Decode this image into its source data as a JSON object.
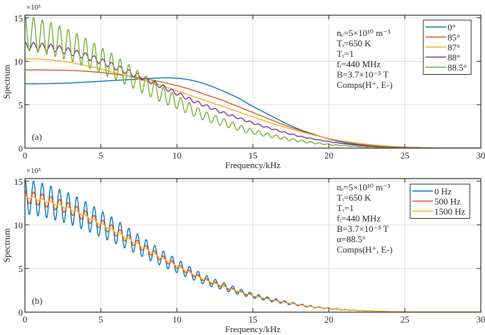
{
  "chart_data": [
    {
      "type": "line",
      "panel_label": "(a)",
      "xlabel": "Frequency/kHz",
      "ylabel": "Spectrum",
      "y_multiplier": "×10⁵",
      "xlim": [
        0,
        30
      ],
      "ylim": [
        0,
        15.3
      ],
      "xticks": [
        0,
        5,
        10,
        15,
        20,
        25,
        30
      ],
      "yticks": [
        0,
        5,
        10,
        15
      ],
      "grid": true,
      "legend_position": "top-right",
      "annotation": [
        "nₑ=5×10¹⁰ m⁻³",
        "Tᵢ=650 K",
        "Tᵣ=1",
        "fᵢ=440 MHz",
        "B=3.7×10⁻⁵ T",
        "Comps(H⁺, E-)"
      ],
      "x_step_khz": 1,
      "oscillation_period_khz": 0.57,
      "series": [
        {
          "name": "0°",
          "color": "#0072BD",
          "rel_osc": 0,
          "values": [
            7.4,
            7.42,
            7.45,
            7.5,
            7.6,
            7.7,
            7.8,
            7.9,
            8.0,
            8.08,
            8.05,
            7.8,
            7.3,
            6.6,
            5.8,
            4.8,
            3.9,
            3.0,
            2.2,
            1.6,
            1.05,
            0.65,
            0.38,
            0.2,
            0.1,
            0.05,
            0.02,
            0.01,
            0,
            0,
            0
          ]
        },
        {
          "name": "85°",
          "color": "#D95319",
          "rel_osc": 0,
          "values": [
            9.0,
            9.0,
            8.98,
            8.95,
            8.85,
            8.7,
            8.5,
            8.25,
            7.95,
            7.6,
            7.2,
            6.7,
            6.1,
            5.5,
            4.8,
            4.1,
            3.4,
            2.7,
            2.1,
            1.55,
            1.1,
            0.75,
            0.48,
            0.3,
            0.17,
            0.09,
            0.04,
            0.02,
            0.01,
            0,
            0
          ]
        },
        {
          "name": "87°",
          "color": "#EDB120",
          "rel_osc": 0,
          "values": [
            10.3,
            10.25,
            10.1,
            9.85,
            9.5,
            9.1,
            8.65,
            8.2,
            7.7,
            7.2,
            6.6,
            6.0,
            5.4,
            4.8,
            4.2,
            3.6,
            3.0,
            2.45,
            1.95,
            1.5,
            1.1,
            0.8,
            0.55,
            0.36,
            0.22,
            0.13,
            0.07,
            0.03,
            0.01,
            0,
            0
          ]
        },
        {
          "name": "88°",
          "color": "#7E2F8E",
          "rel_osc": 0.035,
          "values": [
            11.8,
            11.7,
            11.5,
            11.1,
            10.6,
            10.0,
            9.3,
            8.6,
            7.9,
            7.1,
            6.3,
            5.5,
            4.8,
            4.1,
            3.5,
            2.9,
            2.35,
            1.85,
            1.4,
            1.05,
            0.75,
            0.5,
            0.33,
            0.2,
            0.12,
            0.06,
            0.03,
            0.01,
            0,
            0,
            0
          ]
        },
        {
          "name": "88.5°",
          "color": "#77AC30",
          "rel_osc": 0.15,
          "values": [
            13.2,
            12.9,
            12.4,
            11.8,
            11.0,
            10.1,
            9.2,
            8.2,
            7.2,
            6.2,
            5.3,
            4.4,
            3.6,
            3.0,
            2.4,
            1.9,
            1.5,
            1.15,
            0.85,
            0.6,
            0.42,
            0.28,
            0.18,
            0.11,
            0.06,
            0.03,
            0.01,
            0,
            0,
            0,
            0
          ]
        }
      ]
    },
    {
      "type": "line",
      "panel_label": "(b)",
      "xlabel": "Frequency/kHz",
      "ylabel": "Spectrum",
      "y_multiplier": "×10⁵",
      "xlim": [
        0,
        30
      ],
      "ylim": [
        0,
        15.3
      ],
      "xticks": [
        0,
        5,
        10,
        15,
        20,
        25,
        30
      ],
      "yticks": [
        0,
        5,
        10,
        15
      ],
      "grid": true,
      "legend_position": "top-right",
      "annotation": [
        "nₑ=5×10¹⁰ m⁻³",
        "Tᵢ=650 K",
        "Tᵣ=1",
        "fᵢ=440 MHz",
        "B=3.7×10⁻⁵ T",
        "α=88.5°",
        "Comps(H⁺, E-)"
      ],
      "x_step_khz": 1,
      "oscillation_period_khz": 0.57,
      "series": [
        {
          "name": "0 Hz",
          "color": "#0072BD",
          "rel_osc": 0.15,
          "values": [
            13.2,
            12.9,
            12.4,
            11.8,
            11.0,
            10.1,
            9.2,
            8.2,
            7.2,
            6.2,
            5.3,
            4.4,
            3.6,
            3.0,
            2.4,
            1.9,
            1.5,
            1.15,
            0.85,
            0.6,
            0.42,
            0.28,
            0.18,
            0.11,
            0.06,
            0.03,
            0.01,
            0,
            0,
            0,
            0
          ]
        },
        {
          "name": "500 Hz",
          "color": "#D95319",
          "rel_osc": 0.055,
          "values": [
            13.2,
            12.9,
            12.4,
            11.8,
            11.0,
            10.1,
            9.2,
            8.2,
            7.2,
            6.2,
            5.3,
            4.4,
            3.6,
            3.0,
            2.4,
            1.9,
            1.5,
            1.15,
            0.85,
            0.6,
            0.42,
            0.28,
            0.18,
            0.11,
            0.06,
            0.03,
            0.01,
            0,
            0,
            0,
            0
          ]
        },
        {
          "name": "1500 Hz",
          "color": "#EDB120",
          "rel_osc": 0.012,
          "values": [
            13.2,
            12.9,
            12.4,
            11.8,
            11.0,
            10.1,
            9.2,
            8.2,
            7.2,
            6.2,
            5.3,
            4.4,
            3.6,
            3.0,
            2.4,
            1.9,
            1.5,
            1.15,
            0.85,
            0.6,
            0.42,
            0.28,
            0.18,
            0.11,
            0.06,
            0.03,
            0.01,
            0,
            0,
            0,
            0
          ]
        }
      ]
    }
  ]
}
